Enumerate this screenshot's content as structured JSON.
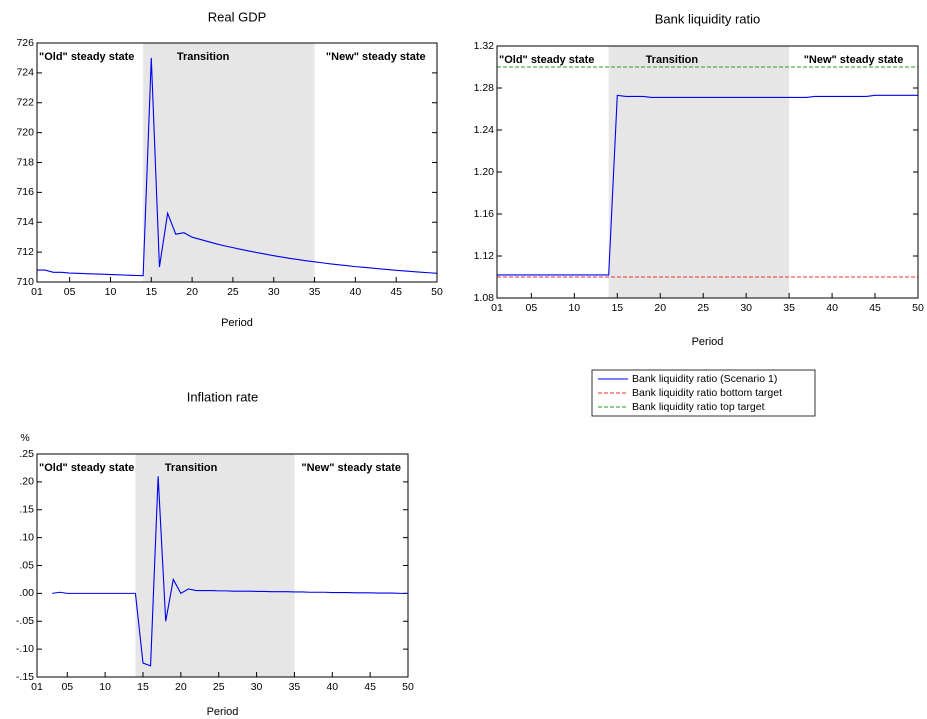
{
  "chart_data": [
    {
      "type": "line",
      "title": "Real GDP",
      "x_label": "Period",
      "x": [
        1,
        2,
        3,
        4,
        5,
        6,
        7,
        8,
        9,
        10,
        11,
        12,
        13,
        14,
        15,
        16,
        17,
        18,
        19,
        20,
        21,
        22,
        23,
        24,
        25,
        26,
        27,
        28,
        29,
        30,
        31,
        32,
        33,
        34,
        35,
        36,
        37,
        38,
        39,
        40,
        41,
        42,
        43,
        44,
        45,
        46,
        47,
        48,
        49,
        50
      ],
      "series": [
        {
          "color": "#0000ee",
          "values": [
            710.8,
            710.8,
            710.65,
            710.65,
            710.6,
            710.58,
            710.56,
            710.54,
            710.52,
            710.5,
            710.48,
            710.46,
            710.44,
            710.42,
            725.0,
            711.0,
            714.6,
            713.2,
            713.3,
            713.0,
            712.85,
            712.7,
            712.55,
            712.42,
            712.3,
            712.18,
            712.07,
            711.96,
            711.86,
            711.76,
            711.67,
            711.58,
            711.5,
            711.42,
            711.35,
            711.28,
            711.21,
            711.15,
            711.09,
            711.03,
            710.98,
            710.93,
            710.88,
            710.83,
            710.78,
            710.74,
            710.7,
            710.66,
            710.62,
            710.58
          ]
        }
      ],
      "xlim": [
        1,
        50
      ],
      "xticks": [
        {
          "value": 1,
          "label": "01"
        },
        {
          "value": 5,
          "label": "05"
        },
        10,
        15,
        20,
        25,
        30,
        35,
        40,
        45,
        50
      ],
      "ylim": [
        710,
        726
      ],
      "yticks": [
        710,
        712,
        714,
        716,
        718,
        720,
        722,
        724,
        726
      ],
      "shaded_region": [
        14,
        35
      ],
      "annotations": [
        "\"Old\" steady state",
        "Transition",
        "\"New\" steady state"
      ]
    },
    {
      "type": "line",
      "title": "Bank liquidity ratio",
      "x_label": "Period",
      "x": [
        1,
        2,
        3,
        4,
        5,
        6,
        7,
        8,
        9,
        10,
        11,
        12,
        13,
        14,
        15,
        16,
        17,
        18,
        19,
        20,
        21,
        22,
        23,
        24,
        25,
        26,
        27,
        28,
        29,
        30,
        31,
        32,
        33,
        34,
        35,
        36,
        37,
        38,
        39,
        40,
        41,
        42,
        43,
        44,
        45,
        46,
        47,
        48,
        49,
        50
      ],
      "series": [
        {
          "name": "Bank liquidity ratio (Scenario 1)",
          "color": "#0000ee",
          "dash": false,
          "values": [
            1.102,
            1.102,
            1.102,
            1.102,
            1.102,
            1.102,
            1.102,
            1.102,
            1.102,
            1.102,
            1.102,
            1.102,
            1.102,
            1.102,
            1.273,
            1.272,
            1.272,
            1.272,
            1.271,
            1.271,
            1.271,
            1.271,
            1.271,
            1.271,
            1.271,
            1.271,
            1.271,
            1.271,
            1.271,
            1.271,
            1.271,
            1.271,
            1.271,
            1.271,
            1.271,
            1.271,
            1.271,
            1.272,
            1.272,
            1.272,
            1.272,
            1.272,
            1.272,
            1.272,
            1.273,
            1.273,
            1.273,
            1.273,
            1.273,
            1.273
          ]
        },
        {
          "name": "Bank liquidity ratio bottom target",
          "color": "#e83030",
          "dash": true,
          "values": [
            1.1,
            1.1,
            1.1,
            1.1,
            1.1,
            1.1,
            1.1,
            1.1,
            1.1,
            1.1,
            1.1,
            1.1,
            1.1,
            1.1,
            1.1,
            1.1,
            1.1,
            1.1,
            1.1,
            1.1,
            1.1,
            1.1,
            1.1,
            1.1,
            1.1,
            1.1,
            1.1,
            1.1,
            1.1,
            1.1,
            1.1,
            1.1,
            1.1,
            1.1,
            1.1,
            1.1,
            1.1,
            1.1,
            1.1,
            1.1,
            1.1,
            1.1,
            1.1,
            1.1,
            1.1,
            1.1,
            1.1,
            1.1,
            1.1,
            1.1
          ]
        },
        {
          "name": "Bank liquidity ratio top target",
          "color": "#2a9a2a",
          "dash": true,
          "values": [
            1.3,
            1.3,
            1.3,
            1.3,
            1.3,
            1.3,
            1.3,
            1.3,
            1.3,
            1.3,
            1.3,
            1.3,
            1.3,
            1.3,
            1.3,
            1.3,
            1.3,
            1.3,
            1.3,
            1.3,
            1.3,
            1.3,
            1.3,
            1.3,
            1.3,
            1.3,
            1.3,
            1.3,
            1.3,
            1.3,
            1.3,
            1.3,
            1.3,
            1.3,
            1.3,
            1.3,
            1.3,
            1.3,
            1.3,
            1.3,
            1.3,
            1.3,
            1.3,
            1.3,
            1.3,
            1.3,
            1.3,
            1.3,
            1.3,
            1.3
          ]
        }
      ],
      "xlim": [
        1,
        50
      ],
      "xticks": [
        {
          "value": 1,
          "label": "01"
        },
        {
          "value": 5,
          "label": "05"
        },
        10,
        15,
        20,
        25,
        30,
        35,
        40,
        45,
        50
      ],
      "ylim": [
        1.08,
        1.32
      ],
      "yticks": [
        1.08,
        1.12,
        1.16,
        {
          "value": 1.2,
          "label": "1.20"
        },
        1.24,
        1.28,
        1.32
      ],
      "shaded_region": [
        14,
        35
      ],
      "legend": "bottom",
      "annotations": [
        "\"Old\" steady state",
        "Transition",
        "\"New\" steady state"
      ]
    },
    {
      "type": "line",
      "title": "Inflation rate",
      "y_label": "%",
      "x_label": "Period",
      "x": [
        1,
        2,
        3,
        4,
        5,
        6,
        7,
        8,
        9,
        10,
        11,
        12,
        13,
        14,
        15,
        16,
        17,
        18,
        19,
        20,
        21,
        22,
        23,
        24,
        25,
        26,
        27,
        28,
        29,
        30,
        31,
        32,
        33,
        34,
        35,
        36,
        37,
        38,
        39,
        40,
        41,
        42,
        43,
        44,
        45,
        46,
        47,
        48,
        49,
        50
      ],
      "series": [
        {
          "color": "#0000ee",
          "values": [
            null,
            null,
            0.0,
            0.002,
            0.0,
            0.0,
            0.0,
            0.0,
            0.0,
            0.0,
            0.0,
            0.0,
            0.0,
            0.0,
            -0.125,
            -0.13,
            0.21,
            -0.05,
            0.025,
            0.0,
            0.008,
            0.005,
            0.005,
            0.005,
            0.0045,
            0.0045,
            0.004,
            0.004,
            0.004,
            0.0035,
            0.0035,
            0.003,
            0.003,
            0.003,
            0.0025,
            0.0025,
            0.002,
            0.002,
            0.002,
            0.0015,
            0.0015,
            0.0015,
            0.001,
            0.001,
            0.001,
            0.0005,
            0.0005,
            0.0005,
            0.0,
            0.0
          ]
        }
      ],
      "xlim": [
        1,
        50
      ],
      "xticks": [
        {
          "value": 1,
          "label": "01"
        },
        {
          "value": 5,
          "label": "05"
        },
        10,
        15,
        20,
        25,
        30,
        35,
        40,
        45,
        50
      ],
      "ylim": [
        -0.15,
        0.25
      ],
      "yticks": [
        {
          "value": -0.15,
          "label": "-.15"
        },
        {
          "value": -0.1,
          "label": "-.10"
        },
        {
          "value": -0.05,
          "label": "-.05"
        },
        {
          "value": 0,
          "label": ".00"
        },
        {
          "value": 0.05,
          "label": ".05"
        },
        {
          "value": 0.1,
          "label": ".10"
        },
        {
          "value": 0.15,
          "label": ".15"
        },
        {
          "value": 0.2,
          "label": ".20"
        },
        {
          "value": 0.25,
          "label": ".25"
        }
      ],
      "shaded_region": [
        14,
        35
      ],
      "annotations": [
        "\"Old\" steady state",
        "Transition",
        "\"New\" steady state"
      ]
    }
  ]
}
